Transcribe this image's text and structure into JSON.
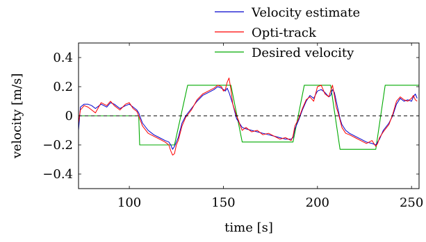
{
  "chart_data": {
    "type": "line",
    "xlabel": "time [s]",
    "ylabel": "velocity [m/s]",
    "xlim": [
      73,
      254
    ],
    "ylim": [
      -0.5,
      0.5
    ],
    "x_ticks": [
      100,
      150,
      200,
      250
    ],
    "x_tick_labels": [
      "100",
      "150",
      "200",
      "250"
    ],
    "y_ticks": [
      -0.4,
      -0.2,
      0,
      0.2,
      0.4
    ],
    "y_tick_labels": [
      "−0.4",
      "−0.2",
      "0",
      "0.2",
      "0.4"
    ],
    "grid": false,
    "legend_position": "top-right (above plot)",
    "zero_line": {
      "y": 0,
      "style": "dashed",
      "color": "#000000"
    },
    "series": [
      {
        "name": "Velocity estimate",
        "color": "#0000cc",
        "x": [
          73,
          74,
          76,
          78,
          80,
          82,
          85,
          88,
          90,
          92,
          95,
          98,
          100,
          102,
          104,
          105,
          107,
          110,
          113,
          116,
          119,
          121,
          122,
          123,
          124,
          125,
          126,
          128,
          130,
          133,
          136,
          139,
          142,
          145,
          147,
          149,
          150,
          151,
          152,
          153,
          154,
          155,
          156,
          157,
          158,
          159,
          160,
          162,
          165,
          168,
          171,
          174,
          177,
          180,
          183,
          186,
          187,
          188,
          190,
          192,
          194,
          196,
          198,
          200,
          202,
          204,
          206,
          207,
          208,
          209,
          210,
          211,
          212,
          213,
          215,
          217,
          220,
          223,
          226,
          229,
          231,
          232,
          233,
          235,
          238,
          240,
          242,
          244,
          246,
          248,
          250,
          251,
          252,
          253
        ],
        "values": [
          -0.1,
          0.06,
          0.08,
          0.08,
          0.07,
          0.05,
          0.08,
          0.06,
          0.09,
          0.08,
          0.05,
          0.07,
          0.08,
          0.06,
          0.04,
          0.02,
          -0.05,
          -0.1,
          -0.13,
          -0.15,
          -0.17,
          -0.18,
          -0.2,
          -0.23,
          -0.21,
          -0.18,
          -0.15,
          -0.05,
          0.0,
          0.05,
          0.1,
          0.14,
          0.16,
          0.18,
          0.2,
          0.19,
          0.18,
          0.17,
          0.19,
          0.16,
          0.12,
          0.08,
          0.03,
          -0.02,
          -0.04,
          -0.06,
          -0.08,
          -0.09,
          -0.1,
          -0.11,
          -0.12,
          -0.13,
          -0.14,
          -0.15,
          -0.16,
          -0.16,
          -0.15,
          -0.09,
          -0.03,
          0.04,
          0.1,
          0.14,
          0.12,
          0.17,
          0.18,
          0.16,
          0.13,
          0.14,
          0.18,
          0.16,
          0.1,
          0.04,
          -0.02,
          -0.06,
          -0.1,
          -0.12,
          -0.14,
          -0.16,
          -0.18,
          -0.19,
          -0.2,
          -0.18,
          -0.16,
          -0.1,
          -0.05,
          0.0,
          0.08,
          0.12,
          0.1,
          0.11,
          0.1,
          0.13,
          0.15,
          0.12
        ]
      },
      {
        "name": "Opti-track",
        "color": "#ff0000",
        "x": [
          73,
          74,
          76,
          78,
          80,
          82,
          85,
          88,
          90,
          92,
          95,
          98,
          100,
          102,
          104,
          105,
          107,
          110,
          113,
          116,
          119,
          121,
          122,
          123,
          124,
          125,
          126,
          128,
          130,
          133,
          136,
          139,
          142,
          145,
          147,
          149,
          150,
          151,
          152,
          153,
          154,
          155,
          156,
          157,
          158,
          159,
          160,
          162,
          165,
          168,
          171,
          174,
          177,
          180,
          183,
          186,
          187,
          188,
          190,
          192,
          194,
          196,
          198,
          200,
          202,
          204,
          206,
          207,
          208,
          209,
          210,
          211,
          212,
          213,
          215,
          217,
          220,
          223,
          226,
          229,
          231,
          232,
          233,
          235,
          238,
          240,
          242,
          244,
          246,
          248,
          250,
          251,
          252,
          253
        ],
        "values": [
          -0.05,
          0.04,
          0.07,
          0.06,
          0.04,
          0.02,
          0.09,
          0.07,
          0.1,
          0.07,
          0.04,
          0.08,
          0.09,
          0.05,
          0.03,
          0.0,
          -0.07,
          -0.12,
          -0.14,
          -0.16,
          -0.18,
          -0.2,
          -0.24,
          -0.27,
          -0.26,
          -0.2,
          -0.17,
          -0.07,
          -0.01,
          0.04,
          0.11,
          0.15,
          0.17,
          0.19,
          0.21,
          0.2,
          0.17,
          0.18,
          0.23,
          0.26,
          0.18,
          0.08,
          0.04,
          0.0,
          -0.03,
          -0.07,
          -0.1,
          -0.08,
          -0.11,
          -0.1,
          -0.13,
          -0.12,
          -0.14,
          -0.16,
          -0.15,
          -0.17,
          -0.14,
          -0.07,
          -0.02,
          0.05,
          0.11,
          0.13,
          0.1,
          0.2,
          0.21,
          0.15,
          0.13,
          0.17,
          0.21,
          0.14,
          0.06,
          0.02,
          -0.03,
          -0.08,
          -0.12,
          -0.13,
          -0.15,
          -0.17,
          -0.19,
          -0.17,
          -0.21,
          -0.19,
          -0.15,
          -0.11,
          -0.06,
          0.01,
          0.1,
          0.13,
          0.11,
          0.1,
          0.12,
          0.14,
          0.11,
          0.1
        ]
      },
      {
        "name": "Desired velocity",
        "color": "#00aa00",
        "x": [
          73,
          105,
          105.5,
          124,
          131,
          154,
          160,
          187,
          193,
          207,
          212,
          231,
          236,
          254
        ],
        "values": [
          0.0,
          0.0,
          -0.2,
          -0.2,
          0.21,
          0.21,
          -0.18,
          -0.18,
          0.21,
          0.21,
          -0.23,
          -0.23,
          0.21,
          0.21
        ]
      }
    ]
  }
}
